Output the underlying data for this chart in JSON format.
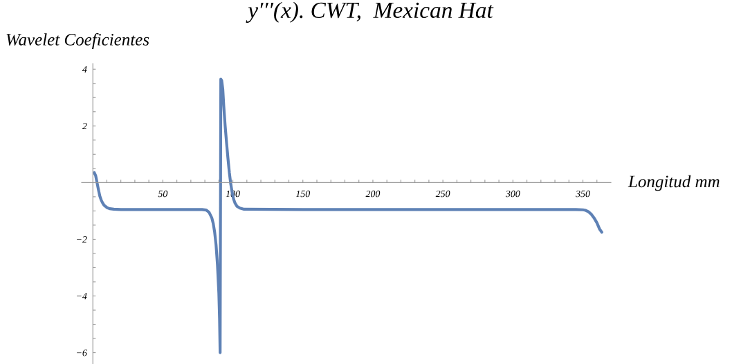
{
  "chart_data": {
    "type": "line",
    "title": "y′′′(x). CWT,  Mexican Hat",
    "xlabel": "Longitud mm",
    "ylabel": "Wavelet Coeficientes",
    "x": [
      1,
      2,
      3,
      4,
      5,
      6,
      7,
      8,
      10,
      12,
      15,
      20,
      40,
      60,
      78,
      81,
      83,
      85,
      86,
      87,
      88,
      89,
      90,
      90.5,
      90.9,
      91.4,
      92,
      92.8,
      93.5,
      94.5,
      95.5,
      96.5,
      97.5,
      98.5,
      99.5,
      100.5,
      101.5,
      103,
      105,
      108,
      150,
      250,
      345,
      350,
      352,
      354,
      356,
      358,
      360,
      362,
      363.5
    ],
    "series": [
      {
        "color": "#5e81b5",
        "values": [
          0.35,
          0.25,
          0.0,
          -0.25,
          -0.48,
          -0.62,
          -0.72,
          -0.8,
          -0.88,
          -0.92,
          -0.94,
          -0.95,
          -0.95,
          -0.95,
          -0.95,
          -0.97,
          -1.05,
          -1.25,
          -1.45,
          -1.75,
          -2.2,
          -2.9,
          -3.9,
          -4.8,
          -6.0,
          3.65,
          3.6,
          3.3,
          2.7,
          2.0,
          1.4,
          0.85,
          0.35,
          -0.05,
          -0.35,
          -0.58,
          -0.72,
          -0.84,
          -0.9,
          -0.94,
          -0.95,
          -0.95,
          -0.95,
          -0.96,
          -0.98,
          -1.03,
          -1.12,
          -1.25,
          -1.42,
          -1.65,
          -1.75
        ]
      }
    ],
    "xlim": [
      -8,
      370
    ],
    "ylim": [
      -6.4,
      4.2
    ],
    "xticks": [
      {
        "value": 10,
        "label": null
      },
      {
        "value": 20,
        "label": null
      },
      {
        "value": 30,
        "label": null
      },
      {
        "value": 40,
        "label": null
      },
      50,
      {
        "value": 60,
        "label": null
      },
      {
        "value": 70,
        "label": null
      },
      {
        "value": 80,
        "label": null
      },
      {
        "value": 90,
        "label": null
      },
      100,
      {
        "value": 110,
        "label": null
      },
      {
        "value": 120,
        "label": null
      },
      {
        "value": 130,
        "label": null
      },
      {
        "value": 140,
        "label": null
      },
      150,
      {
        "value": 160,
        "label": null
      },
      {
        "value": 170,
        "label": null
      },
      {
        "value": 180,
        "label": null
      },
      {
        "value": 190,
        "label": null
      },
      200,
      {
        "value": 210,
        "label": null
      },
      {
        "value": 220,
        "label": null
      },
      {
        "value": 230,
        "label": null
      },
      {
        "value": 240,
        "label": null
      },
      250,
      {
        "value": 260,
        "label": null
      },
      {
        "value": 270,
        "label": null
      },
      {
        "value": 280,
        "label": null
      },
      {
        "value": 290,
        "label": null
      },
      300,
      {
        "value": 310,
        "label": null
      },
      {
        "value": 320,
        "label": null
      },
      {
        "value": 330,
        "label": null
      },
      {
        "value": 340,
        "label": null
      },
      350,
      {
        "value": 360,
        "label": null
      }
    ],
    "yticks": [
      {
        "value": -6,
        "label": "−6"
      },
      {
        "value": -5.5,
        "label": null
      },
      {
        "value": -5,
        "label": null
      },
      {
        "value": -4.5,
        "label": null
      },
      {
        "value": -4,
        "label": "−4"
      },
      {
        "value": -3.5,
        "label": null
      },
      {
        "value": -3,
        "label": null
      },
      {
        "value": -2.5,
        "label": null
      },
      {
        "value": -2,
        "label": "−2"
      },
      {
        "value": -1.5,
        "label": null
      },
      {
        "value": -1,
        "label": null
      },
      {
        "value": -0.5,
        "label": null
      },
      {
        "value": 0.5,
        "label": null
      },
      {
        "value": 1,
        "label": null
      },
      {
        "value": 1.5,
        "label": null
      },
      2,
      {
        "value": 2.5,
        "label": null
      },
      {
        "value": 3,
        "label": null
      },
      {
        "value": 3.5,
        "label": null
      },
      4
    ],
    "grid": false,
    "marker": "none",
    "line_style": "solid"
  }
}
